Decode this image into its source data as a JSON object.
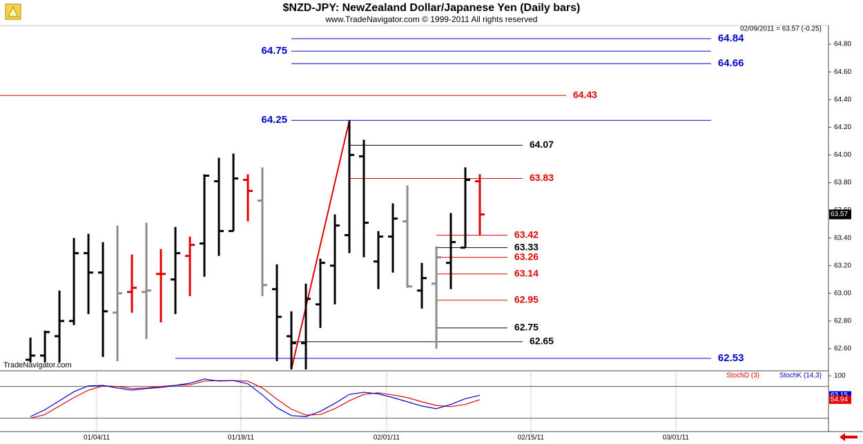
{
  "chart_data": [
    {
      "type": "ohlc",
      "title": "$NZD-JPY:  NewZealand Dollar/Japanese Yen  (Daily bars)",
      "subtitle": "www.TradeNavigator.com © 1999-2011 All rights reserved",
      "quote": "02/09/2011 = 63.57 (-0.25)",
      "watermark": "TradeNavigator.com",
      "x": [
        0,
        1,
        2,
        3,
        4,
        5,
        6,
        7,
        8,
        9,
        10,
        11,
        12,
        13,
        14,
        15,
        16,
        17,
        18,
        19,
        20,
        21,
        22,
        23,
        24,
        25,
        26,
        27,
        28,
        29,
        30,
        31
      ],
      "open": [
        62.52,
        62.55,
        62.69,
        62.8,
        63.29,
        63.15,
        62.86,
        63.01,
        63.01,
        63.14,
        63.1,
        63.27,
        63.36,
        63.81,
        63.45,
        63.82,
        63.67,
        63.03,
        62.69,
        62.64,
        62.92,
        63.2,
        63.42,
        63.99,
        63.23,
        63.41,
        63.52,
        63.02,
        63.07,
        63.22,
        63.33,
        63.81
      ],
      "high": [
        62.68,
        62.73,
        63.02,
        63.4,
        63.43,
        63.37,
        63.49,
        63.28,
        63.51,
        63.32,
        63.48,
        63.41,
        63.86,
        63.98,
        64.01,
        63.86,
        63.91,
        63.21,
        62.87,
        63.07,
        63.25,
        63.57,
        64.25,
        64.11,
        63.45,
        63.65,
        63.78,
        63.22,
        63.34,
        63.58,
        63.91,
        63.86
      ],
      "low": [
        62.5,
        62.5,
        62.5,
        62.77,
        62.85,
        62.54,
        62.51,
        62.86,
        62.67,
        62.79,
        62.85,
        62.98,
        63.12,
        63.27,
        63.45,
        63.52,
        62.98,
        62.51,
        62.45,
        62.45,
        62.75,
        62.92,
        63.29,
        63.26,
        63.03,
        63.15,
        63.04,
        62.89,
        62.6,
        63.03,
        63.33,
        63.42
      ],
      "close": [
        62.55,
        62.72,
        62.8,
        63.29,
        63.15,
        62.87,
        63.0,
        63.04,
        63.02,
        63.14,
        63.29,
        63.35,
        63.85,
        63.45,
        63.83,
        63.74,
        63.06,
        62.83,
        62.64,
        62.96,
        63.22,
        63.49,
        64.0,
        63.51,
        63.41,
        63.54,
        63.05,
        63.11,
        63.26,
        63.37,
        63.82,
        63.57
      ],
      "bar_colors": [
        "#000000",
        "#000000",
        "#000000",
        "#000000",
        "#000000",
        "#000000",
        "#8c8c8c",
        "#e00000",
        "#8c8c8c",
        "#e00000",
        "#000000",
        "#e00000",
        "#000000",
        "#000000",
        "#000000",
        "#e00000",
        "#8c8c8c",
        "#000000",
        "#000000",
        "#000000",
        "#000000",
        "#000000",
        "#000000",
        "#000000",
        "#000000",
        "#000000",
        "#8c8c8c",
        "#000000",
        "#8c8c8c",
        "#000000",
        "#000000",
        "#e00000"
      ],
      "xlim": [
        -2.1,
        55.05
      ],
      "ylim": [
        62.44,
        64.935
      ],
      "yticks": [
        {
          "value": 62.6,
          "label": "62.60"
        },
        {
          "value": 62.8,
          "label": "62.80"
        },
        {
          "value": 63,
          "label": "63.00"
        },
        {
          "value": 63.2,
          "label": "63.20"
        },
        {
          "value": 63.4,
          "label": "63.40"
        },
        {
          "value": 63.6,
          "label": "63.60"
        },
        {
          "value": 63.8,
          "label": "63.80"
        },
        {
          "value": 64,
          "label": "64.00"
        },
        {
          "value": 64.2,
          "label": "64.20"
        },
        {
          "value": 64.4,
          "label": "64.40"
        },
        {
          "value": 64.6,
          "label": "64.60"
        },
        {
          "value": 64.8,
          "label": "64.80"
        }
      ],
      "levels": [
        {
          "value": 64.84,
          "color": "#0000cc",
          "from": 18,
          "to": 46.95,
          "label_side": "right"
        },
        {
          "value": 64.75,
          "color": "#0000cc",
          "from": 18,
          "to": 46.95,
          "label_side": "left"
        },
        {
          "value": 64.66,
          "color": "#0000cc",
          "from": 18,
          "to": 46.95,
          "label_side": "right"
        },
        {
          "value": 64.43,
          "color": "#e00000",
          "from": -2.1,
          "to": 36.95,
          "label_side": "right"
        },
        {
          "value": 64.25,
          "color": "#0000cc",
          "from": 18,
          "to": 46.95,
          "label_side": "left"
        },
        {
          "value": 64.07,
          "color": "#000000",
          "from": 22,
          "to": 33.95,
          "label_side": "right"
        },
        {
          "value": 63.83,
          "color": "#e00000",
          "from": 22,
          "to": 33.95,
          "label_side": "right"
        },
        {
          "value": 63.42,
          "color": "#e00000",
          "from": 28,
          "to": 32.9,
          "label_side": "right"
        },
        {
          "value": 63.33,
          "color": "#000000",
          "from": 28,
          "to": 32.9,
          "label_side": "right"
        },
        {
          "value": 63.26,
          "color": "#e00000",
          "from": 28,
          "to": 32.9,
          "label_side": "right"
        },
        {
          "value": 63.14,
          "color": "#e00000",
          "from": 28,
          "to": 32.9,
          "label_side": "right"
        },
        {
          "value": 62.95,
          "color": "#e00000",
          "from": 28,
          "to": 32.9,
          "label_side": "right"
        },
        {
          "value": 62.75,
          "color": "#000000",
          "from": 28,
          "to": 32.9,
          "label_side": "right"
        },
        {
          "value": 62.65,
          "color": "#000000",
          "from": 18,
          "to": 33.95,
          "label_side": "right"
        },
        {
          "value": 62.53,
          "color": "#0000cc",
          "from": 10,
          "to": 46.95,
          "label_side": "right"
        }
      ],
      "trendline": {
        "x": [
          18,
          22
        ],
        "y": [
          62.45,
          64.25
        ],
        "color": "#e00000"
      }
    },
    {
      "type": "line",
      "x": [
        0,
        1,
        2,
        3,
        4,
        5,
        6,
        7,
        8,
        9,
        10,
        11,
        12,
        13,
        14,
        15,
        16,
        17,
        18,
        19,
        20,
        21,
        22,
        23,
        24,
        25,
        26,
        27,
        28,
        29,
        30,
        31
      ],
      "series": [
        {
          "name": "StochD (3)",
          "color": "#e00000",
          "values": [
            20,
            27,
            43,
            59,
            73,
            81,
            80,
            76,
            77,
            80,
            82,
            83,
            90,
            91,
            91,
            90,
            77,
            56,
            37,
            26,
            27,
            38,
            53,
            65,
            68,
            64,
            59,
            51,
            44,
            42,
            46,
            54.94
          ]
        },
        {
          "name": "StochK (14,3)",
          "color": "#0000cc",
          "values": [
            23,
            36,
            53,
            70,
            81,
            82,
            77,
            73,
            76,
            78,
            82,
            86,
            94,
            90,
            91,
            85,
            64,
            40,
            25,
            23,
            33,
            48,
            65,
            69,
            66,
            59,
            51,
            43,
            38,
            46,
            57,
            63.15
          ]
        }
      ],
      "xlim": [
        -2.1,
        55.05
      ],
      "ylim": [
        -5.2,
        109.5
      ],
      "yticks": [
        100
      ],
      "ref_lines": [
        20,
        80
      ],
      "xticks": [
        {
          "value": 4.57,
          "label": "01/04/11"
        },
        {
          "value": 14.52,
          "label": "01/18/11"
        },
        {
          "value": 24.57,
          "label": "02/01/11"
        },
        {
          "value": 34.52,
          "label": "02/15/11"
        },
        {
          "value": 44.52,
          "label": "03/01/11"
        }
      ]
    }
  ]
}
